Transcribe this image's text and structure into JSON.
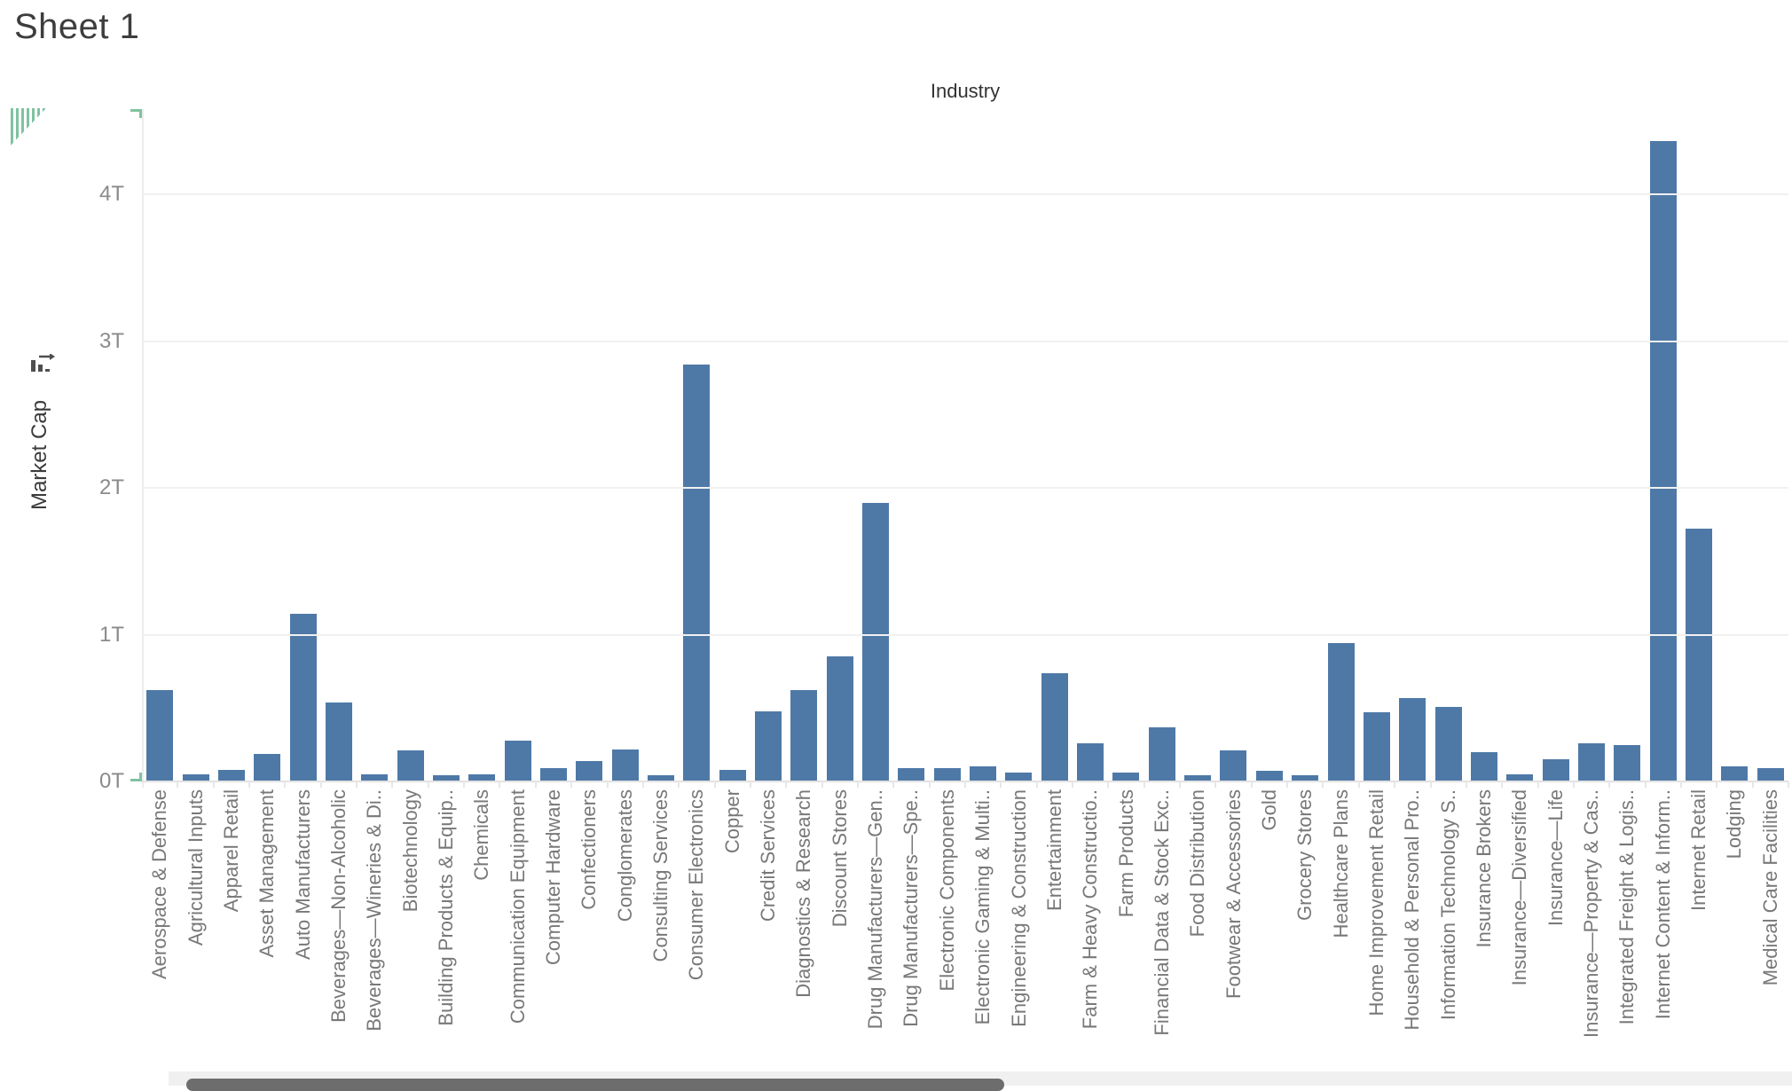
{
  "window": {
    "title": "Sheet 1"
  },
  "colors": {
    "bar": "#4e79a7",
    "grid": "#f1f1f1",
    "axis_line": "#e2e2e2",
    "tick_label": "#8a8a8a",
    "category_label": "#787878",
    "header_text": "#333333",
    "accent_green": "#7fc2a0",
    "scroll_thumb": "#6d6d6d",
    "scroll_track": "#f0f0f0"
  },
  "icons": [
    "drag-handle-triangle-icon",
    "sort-by-field-icon",
    "axis-corner-bracket-icon"
  ],
  "chart_data": {
    "type": "bar",
    "title": "Industry",
    "xlabel": "Industry",
    "ylabel": "Market Cap",
    "unit": "T (trillions)",
    "ylim": [
      0,
      4.58
    ],
    "grid": true,
    "yticks": [
      {
        "v": 0,
        "label": "0T"
      },
      {
        "v": 1,
        "label": "1T"
      },
      {
        "v": 2,
        "label": "2T"
      },
      {
        "v": 3,
        "label": "3T"
      },
      {
        "v": 4,
        "label": "4T"
      }
    ],
    "categories": [
      "Aerospace & Defense",
      "Agricultural Inputs",
      "Apparel Retail",
      "Asset Management",
      "Auto Manufacturers",
      "Beverages—Non-Alcoholic",
      "Beverages—Wineries & Di..",
      "Biotechnology",
      "Building Products & Equip..",
      "Chemicals",
      "Communication Equipment",
      "Computer Hardware",
      "Confectioners",
      "Conglomerates",
      "Consulting Services",
      "Consumer Electronics",
      "Copper",
      "Credit Services",
      "Diagnostics & Research",
      "Discount Stores",
      "Drug Manufacturers—Gen..",
      "Drug Manufacturers—Spe..",
      "Electronic Components",
      "Electronic Gaming & Multi..",
      "Engineering & Construction",
      "Entertainment",
      "Farm & Heavy Constructio..",
      "Farm Products",
      "Financial Data & Stock Exc..",
      "Food Distribution",
      "Footwear & Accessories",
      "Gold",
      "Grocery Stores",
      "Healthcare Plans",
      "Home Improvement Retail",
      "Household & Personal Pro..",
      "Information Technology S..",
      "Insurance Brokers",
      "Insurance—Diversified",
      "Insurance—Life",
      "Insurance—Property & Cas..",
      "Integrated Freight & Logis..",
      "Internet Content & Inform..",
      "Internet Retail",
      "Lodging",
      "Medical Care Facilities"
    ],
    "values": [
      0.62,
      0.05,
      0.08,
      0.19,
      1.14,
      0.54,
      0.05,
      0.21,
      0.04,
      0.05,
      0.28,
      0.09,
      0.14,
      0.22,
      0.04,
      2.84,
      0.08,
      0.48,
      0.62,
      0.85,
      1.9,
      0.09,
      0.09,
      0.1,
      0.06,
      0.74,
      0.26,
      0.06,
      0.37,
      0.04,
      0.21,
      0.07,
      0.04,
      0.94,
      0.47,
      0.57,
      0.51,
      0.2,
      0.05,
      0.15,
      0.26,
      0.25,
      4.36,
      1.72,
      0.1,
      0.09
    ]
  }
}
